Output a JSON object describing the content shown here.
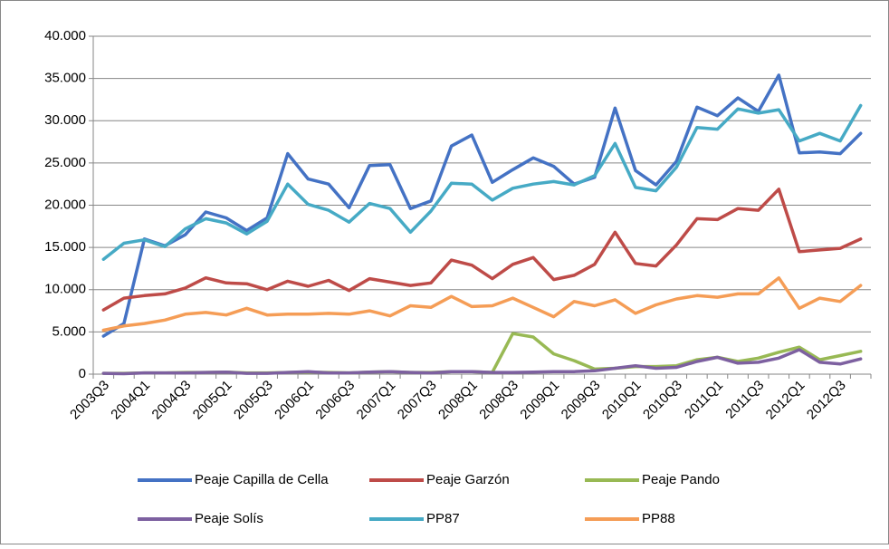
{
  "chart_data": {
    "type": "line",
    "categories": [
      "2003Q3",
      null,
      "2004Q1",
      null,
      "2004Q3",
      null,
      "2005Q1",
      null,
      "2005Q3",
      null,
      "2006Q1",
      null,
      "2006Q3",
      null,
      "2007Q1",
      null,
      "2007Q3",
      null,
      "2008Q1",
      null,
      "2008Q3",
      null,
      "2009Q1",
      null,
      "2009Q3",
      null,
      "2010Q1",
      null,
      "2010Q3",
      null,
      "2011Q1",
      null,
      "2011Q3",
      null,
      "2012Q1",
      null,
      "2012Q3",
      null
    ],
    "series": [
      {
        "name": "Peaje Capilla de Cella",
        "color": "#4472c4",
        "values": [
          4500,
          6000,
          16000,
          15200,
          16500,
          19200,
          18500,
          17000,
          18500,
          26100,
          23100,
          22500,
          19700,
          24700,
          24800,
          19600,
          20500,
          27000,
          28300,
          22700,
          24200,
          25600,
          24600,
          22500,
          23300,
          31500,
          24100,
          22400,
          25200,
          31600,
          30600,
          32700,
          31100,
          35400,
          26200,
          26300,
          26100,
          28500
        ]
      },
      {
        "name": "Peaje Garzón",
        "color": "#be4b48",
        "values": [
          7600,
          9000,
          9300,
          9500,
          10200,
          11400,
          10800,
          10700,
          10000,
          11000,
          10400,
          11100,
          9900,
          11300,
          10900,
          10500,
          10800,
          13500,
          12900,
          11300,
          13000,
          13800,
          11200,
          11700,
          13000,
          16800,
          13100,
          12800,
          15300,
          18400,
          18300,
          19600,
          19400,
          21900,
          14500,
          14700,
          14900,
          16000
        ]
      },
      {
        "name": "Peaje Pando",
        "color": "#98b954",
        "values": [
          100,
          100,
          150,
          150,
          200,
          200,
          250,
          150,
          150,
          200,
          250,
          200,
          150,
          250,
          300,
          200,
          200,
          300,
          300,
          200,
          4800,
          4400,
          2400,
          1600,
          600,
          700,
          900,
          900,
          1000,
          1700,
          2000,
          1500,
          1900,
          2600,
          3200,
          1700,
          2200,
          2700
        ]
      },
      {
        "name": "Peaje Solís",
        "color": "#7d60a0",
        "values": [
          100,
          50,
          150,
          150,
          150,
          200,
          250,
          100,
          100,
          200,
          300,
          150,
          150,
          250,
          300,
          200,
          150,
          300,
          300,
          200,
          200,
          250,
          300,
          300,
          400,
          700,
          1000,
          700,
          800,
          1500,
          2000,
          1300,
          1400,
          1900,
          2900,
          1400,
          1200,
          1800
        ]
      },
      {
        "name": "PP87",
        "color": "#46aac5",
        "values": [
          13600,
          15500,
          15900,
          15100,
          17200,
          18400,
          17900,
          16600,
          18100,
          22500,
          20100,
          19400,
          18000,
          20200,
          19600,
          16800,
          19300,
          22600,
          22500,
          20600,
          22000,
          22500,
          22800,
          22400,
          23500,
          27300,
          22100,
          21700,
          24500,
          29200,
          29000,
          31400,
          30900,
          31300,
          27600,
          28500,
          27600,
          31800
        ]
      },
      {
        "name": "PP88",
        "color": "#f59d56",
        "values": [
          5200,
          5700,
          6000,
          6400,
          7100,
          7300,
          7000,
          7800,
          7000,
          7100,
          7100,
          7200,
          7100,
          7500,
          6900,
          8100,
          7900,
          9200,
          8000,
          8100,
          9000,
          7900,
          6800,
          8600,
          8100,
          8800,
          7200,
          8200,
          8900,
          9300,
          9100,
          9500,
          9500,
          11400,
          7800,
          9000,
          8600,
          10500
        ]
      }
    ],
    "ylim": [
      0,
      40000
    ],
    "yticks": [
      0,
      {
        "value": 5000,
        "label": "5.000"
      },
      {
        "value": 10000,
        "label": "10.000"
      },
      {
        "value": 15000,
        "label": "15.000"
      },
      {
        "value": 20000,
        "label": "20.000"
      },
      {
        "value": 25000,
        "label": "25.000"
      },
      {
        "value": 30000,
        "label": "30.000"
      },
      {
        "value": 35000,
        "label": "35.000"
      },
      {
        "value": 40000,
        "label": "40.000"
      }
    ],
    "grid": true,
    "legend": "bottom"
  }
}
